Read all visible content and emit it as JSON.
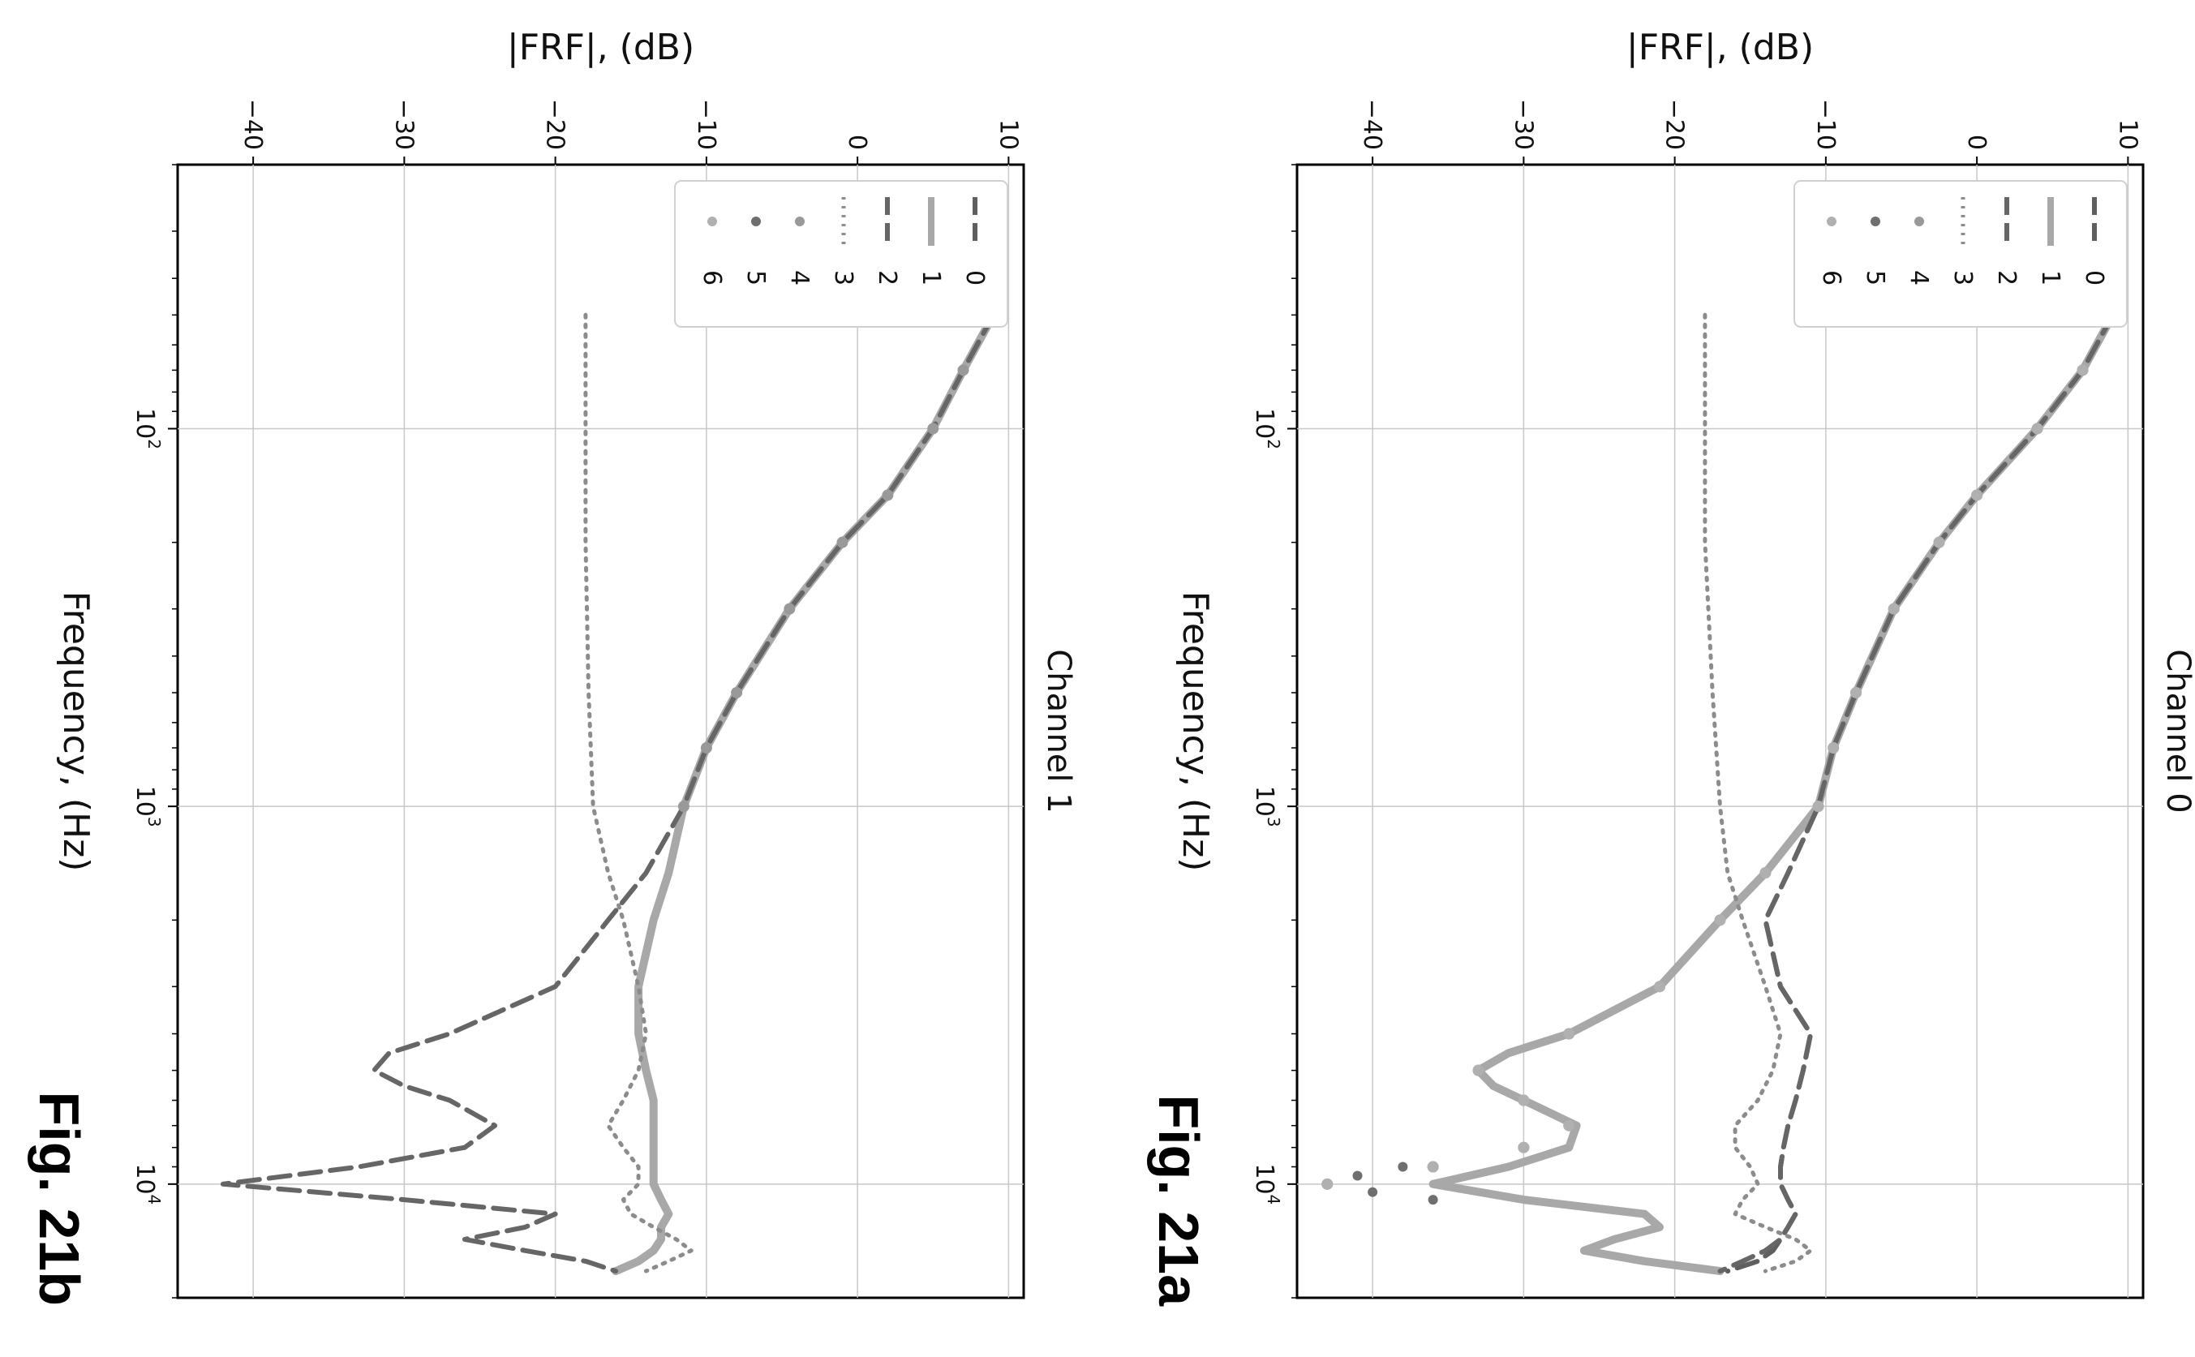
{
  "figure_a_label": "Fig. 21a",
  "figure_b_label": "Fig. 21b",
  "series_colors": {
    "0": "#5f5f5f",
    "1": "#a8a8a8",
    "2": "#666666",
    "3": "#8c8c8c",
    "4": "#999999",
    "5": "#6f6f6f",
    "6": "#b0b0b0"
  },
  "chart_data": [
    {
      "type": "line",
      "title": "Channel 0",
      "xlabel": "Frequency, (Hz)",
      "ylabel": "|FRF|, (dB)",
      "x_scale": "log",
      "xlim": [
        20,
        20000
      ],
      "ylim": [
        -45,
        11
      ],
      "x_ticks": [
        {
          "value": 100,
          "label": "10^2"
        },
        {
          "value": 1000,
          "label": "10^3"
        },
        {
          "value": 10000,
          "label": "10^4"
        }
      ],
      "y_ticks": [
        {
          "value": -40,
          "label": "−40"
        },
        {
          "value": -30,
          "label": "−30"
        },
        {
          "value": -20,
          "label": "−20"
        },
        {
          "value": -10,
          "label": "−10"
        },
        {
          "value": 0,
          "label": "0"
        },
        {
          "value": 10,
          "label": "10"
        }
      ],
      "grid": true,
      "legend_position": "upper-left",
      "legend": [
        "0",
        "1",
        "2",
        "3",
        "4",
        "5",
        "6"
      ],
      "series": [
        {
          "name": "0",
          "style": "dashed",
          "x": [
            50,
            70,
            100,
            150,
            200,
            300,
            500,
            700,
            1000,
            1500,
            2000,
            3000,
            4000,
            5000,
            6000,
            7000,
            8000,
            9000,
            10000,
            11000,
            12000,
            13000,
            14000,
            15000,
            16000,
            17000
          ],
          "y": [
            9,
            7,
            4,
            0,
            -2.5,
            -5.5,
            -8,
            -9.5,
            -10.5,
            -12.5,
            -14,
            -13,
            -11,
            -11.5,
            -12,
            -12.5,
            -12.8,
            -13,
            -13,
            -12.5,
            -12,
            -12.5,
            -13,
            -13.5,
            -14.5,
            -16.5
          ]
        },
        {
          "name": "1",
          "style": "solid",
          "x": [
            50,
            70,
            100,
            150,
            200,
            300,
            500,
            700,
            1000,
            1500,
            2000,
            3000,
            4000,
            4500,
            5000,
            5500,
            6000,
            7000,
            8000,
            9000,
            10000,
            11000,
            12000,
            13000,
            14000,
            15000,
            16000,
            17000
          ],
          "y": [
            9,
            7,
            4,
            0,
            -2.5,
            -5.5,
            -8,
            -9.5,
            -10.5,
            -14,
            -17,
            -21,
            -27,
            -31,
            -33,
            -32,
            -30,
            -26.5,
            -27,
            -31,
            -36,
            -30,
            -22,
            -21,
            -24,
            -26,
            -22,
            -17
          ]
        },
        {
          "name": "2",
          "style": "dashed",
          "x": [
            50,
            70,
            100,
            150,
            200,
            300,
            500,
            700,
            1000,
            1500,
            2000,
            3000,
            4000,
            5000,
            6000,
            7000,
            8000,
            9000,
            10000,
            11000,
            12000,
            13000,
            14000,
            15000,
            16000,
            17000
          ],
          "y": [
            9,
            7,
            4,
            0,
            -2.5,
            -5.5,
            -8,
            -9.5,
            -10.5,
            -12.5,
            -14,
            -13,
            -11,
            -11.5,
            -12,
            -12.5,
            -12.8,
            -13,
            -13,
            -12.5,
            -12,
            -12.5,
            -13,
            -14,
            -15.5,
            -17
          ]
        },
        {
          "name": "3",
          "style": "dotted",
          "x": [
            50,
            100,
            200,
            500,
            1000,
            1500,
            2000,
            3000,
            4000,
            5000,
            6000,
            7000,
            8000,
            9000,
            10000,
            11000,
            12000,
            13000,
            14000,
            15000,
            16000,
            17000
          ],
          "y": [
            -18,
            -18,
            -18,
            -17.5,
            -17,
            -16.5,
            -15.5,
            -14,
            -13,
            -13.5,
            -14.5,
            -16,
            -16,
            -15,
            -14.5,
            -15.5,
            -16,
            -14,
            -12,
            -11,
            -12,
            -14
          ]
        },
        {
          "name": "4",
          "style": "markers",
          "x": [
            50,
            70,
            100,
            150,
            200,
            300,
            500,
            700,
            1000,
            1500,
            2000,
            3000,
            4000,
            5000,
            6000,
            7000,
            8000,
            9000,
            10000
          ],
          "y": [
            9,
            7,
            4,
            0,
            -2.5,
            -5.5,
            -8,
            -9.5,
            -10.5,
            -14,
            -17,
            -21,
            -27,
            -33,
            -30,
            -27,
            -30,
            -36,
            -43
          ]
        },
        {
          "name": "5",
          "style": "markers",
          "x": [
            9000,
            9500,
            10000,
            10500,
            11000
          ],
          "y": [
            -38,
            -41,
            -43,
            -40,
            -36
          ]
        },
        {
          "name": "6",
          "style": "markers",
          "x": [
            50,
            70,
            100,
            150,
            200,
            300,
            500,
            700,
            1000,
            1500,
            2000,
            3000,
            4000,
            5000,
            6000,
            7000,
            8000,
            9000,
            10000
          ],
          "y": [
            9,
            7,
            4,
            0,
            -2.5,
            -5.5,
            -8,
            -9.5,
            -10.5,
            -14,
            -17,
            -21,
            -27,
            -33,
            -30,
            -27,
            -30,
            -36,
            -43
          ]
        }
      ]
    },
    {
      "type": "line",
      "title": "Channel 1",
      "xlabel": "Frequency, (Hz)",
      "ylabel": "|FRF|, (dB)",
      "x_scale": "log",
      "xlim": [
        20,
        20000
      ],
      "ylim": [
        -45,
        11
      ],
      "x_ticks": [
        {
          "value": 100,
          "label": "10^2"
        },
        {
          "value": 1000,
          "label": "10^3"
        },
        {
          "value": 10000,
          "label": "10^4"
        }
      ],
      "y_ticks": [
        {
          "value": -40,
          "label": "−40"
        },
        {
          "value": -30,
          "label": "−30"
        },
        {
          "value": -20,
          "label": "−20"
        },
        {
          "value": -10,
          "label": "−10"
        },
        {
          "value": 0,
          "label": "0"
        },
        {
          "value": 10,
          "label": "10"
        }
      ],
      "grid": true,
      "legend_position": "upper-left",
      "legend": [
        "0",
        "1",
        "2",
        "3",
        "4",
        "5",
        "6"
      ],
      "series": [
        {
          "name": "0",
          "style": "dashed",
          "x": [
            50,
            70,
            100,
            150,
            200,
            300,
            500,
            700,
            1000,
            1500,
            2000,
            3000,
            4000,
            5000,
            6000,
            7000,
            8000,
            9000,
            10000,
            11000,
            12000,
            13000,
            14000,
            15000,
            16000,
            17000
          ],
          "y": [
            9,
            7,
            5,
            2,
            -1,
            -4.5,
            -8,
            -10,
            -11.5,
            -12.5,
            -13.5,
            -14.5,
            -14.5,
            -14,
            -13.5,
            -13.5,
            -13.5,
            -13.5,
            -13.5,
            -13,
            -12.5,
            -13,
            -13,
            -13.5,
            -14.5,
            -16
          ]
        },
        {
          "name": "1",
          "style": "solid",
          "x": [
            50,
            70,
            100,
            150,
            200,
            300,
            500,
            700,
            1000,
            1500,
            2000,
            3000,
            4000,
            5000,
            6000,
            7000,
            8000,
            9000,
            10000,
            11000,
            12000,
            13000,
            14000,
            15000,
            16000,
            17000
          ],
          "y": [
            9,
            7,
            5,
            2,
            -1,
            -4.5,
            -8,
            -10,
            -11.5,
            -12.5,
            -13.5,
            -14.5,
            -14.5,
            -14,
            -13.5,
            -13.5,
            -13.5,
            -13.5,
            -13.5,
            -13,
            -12.5,
            -13,
            -13,
            -13.5,
            -14.5,
            -16
          ]
        },
        {
          "name": "2",
          "style": "dashed",
          "x": [
            50,
            70,
            100,
            150,
            200,
            300,
            500,
            700,
            1000,
            1500,
            2000,
            3000,
            4000,
            4500,
            5000,
            5500,
            6000,
            7000,
            8000,
            9000,
            10000,
            11000,
            12000,
            13000,
            14000,
            15000,
            16000,
            17000
          ],
          "y": [
            9,
            7,
            5,
            2,
            -1,
            -4.5,
            -8,
            -10,
            -11.5,
            -14,
            -16.5,
            -20,
            -27,
            -31,
            -32,
            -30,
            -27,
            -24,
            -26,
            -33,
            -42,
            -30,
            -20,
            -22,
            -26,
            -22,
            -18,
            -16
          ]
        },
        {
          "name": "3",
          "style": "dotted",
          "x": [
            50,
            100,
            200,
            500,
            1000,
            1500,
            2000,
            3000,
            4000,
            5000,
            6000,
            7000,
            8000,
            9000,
            10000,
            11000,
            12000,
            13000,
            14000,
            15000,
            16000,
            17000
          ],
          "y": [
            -18,
            -18,
            -18,
            -17.8,
            -17.5,
            -16.5,
            -15.5,
            -14.5,
            -14,
            -14.5,
            -15.5,
            -16.5,
            -15.5,
            -14.5,
            -14.5,
            -15.5,
            -15,
            -13.5,
            -12,
            -11,
            -12.5,
            -14
          ]
        },
        {
          "name": "4",
          "style": "markers",
          "x": [
            50,
            70,
            100,
            150,
            200,
            300,
            500,
            700,
            1000
          ],
          "y": [
            9,
            7,
            5,
            2,
            -1,
            -4.5,
            -8,
            -10,
            -11.5
          ]
        },
        {
          "name": "5",
          "style": "markers",
          "x": [],
          "y": []
        },
        {
          "name": "6",
          "style": "markers",
          "x": [],
          "y": []
        }
      ]
    }
  ]
}
